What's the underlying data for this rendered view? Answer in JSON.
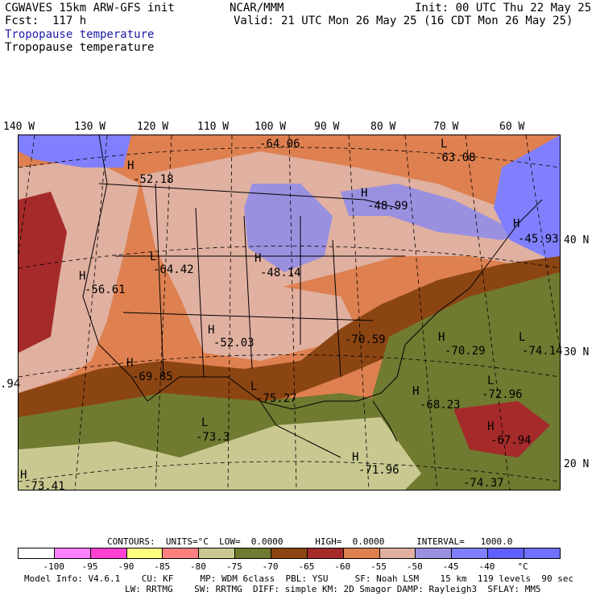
{
  "header": {
    "line1_left": "CGWAVES 15km ARW-GFS init",
    "line1_center": "NCAR/MMM",
    "line1_right": "Init: 00 UTC Thu 22 May 25",
    "line2_left": "Fcst:  117 h",
    "line2_right": "Valid: 21 UTC Mon 26 May 25 (16 CDT Mon 26 May 25)",
    "field_title_1": "Tropopause temperature",
    "field_title_2": "Tropopause temperature"
  },
  "longitudes": [
    "140 W",
    "130 W",
    "120 W",
    "110 W",
    "100 W",
    "90 W",
    "80 W",
    "70 W",
    "60 W"
  ],
  "latitudes": [
    "40 N",
    "30 N",
    "20 N"
  ],
  "labels": [
    {
      "t": "H",
      "v": "-52.18"
    },
    {
      "t": "",
      "v": "-64.06"
    },
    {
      "t": "L",
      "v": "-63.08"
    },
    {
      "t": "H",
      "v": "-48.99"
    },
    {
      "t": "H",
      "v": "-45.93"
    },
    {
      "t": "L",
      "v": "-64.42"
    },
    {
      "t": "H",
      "v": "-48.14"
    },
    {
      "t": "H",
      "v": "-56.61"
    },
    {
      "t": "H",
      "v": "-52.03"
    },
    {
      "t": "",
      "v": "-70.59"
    },
    {
      "t": "H",
      "v": "-70.29"
    },
    {
      "t": "L",
      "v": "-74.14"
    },
    {
      "t": "",
      "v": ".94"
    },
    {
      "t": "H",
      "v": "-69.85"
    },
    {
      "t": "L",
      "v": "-75.27"
    },
    {
      "t": "L",
      "v": "-72.96"
    },
    {
      "t": "H",
      "v": "-68.23"
    },
    {
      "t": "L",
      "v": "-73.3"
    },
    {
      "t": "H",
      "v": "-67.94"
    },
    {
      "t": "H",
      "v": "-71.96"
    },
    {
      "t": "H",
      "v": "-73.41"
    },
    {
      "t": "",
      "v": "-74.37"
    }
  ],
  "contours": "CONTOURS:  UNITS=°C  LOW=  0.0000      HIGH=  0.0000      INTERVAL=   1000.0",
  "colorbar": {
    "colors": [
      "#ffffff",
      "#ff80ff",
      "#ff40d0",
      "#ffff80",
      "#ff8080",
      "#c8c890",
      "#707a30",
      "#8b4513",
      "#a52a2a",
      "#de8050",
      "#e0b0a0",
      "#9a90e0",
      "#8080ff",
      "#6060ff",
      "#7070ff"
    ],
    "ticks": [
      "-100",
      "-95",
      "-90",
      "-85",
      "-80",
      "-75",
      "-70",
      "-65",
      "-60",
      "-55",
      "-50",
      "-45",
      "-40",
      "°C"
    ]
  },
  "footer": {
    "line1": "Model Info: V4.6.1    CU: KF     MP: WDM 6class  PBL: YSU     SF: Noah LSM    15 km  119 levels  90 sec",
    "line2": "LW: RRTMG    SW: RRTMG  DIFF: simple KM: 2D Smagor DAMP: Rayleigh3  SFLAY: MM5"
  }
}
